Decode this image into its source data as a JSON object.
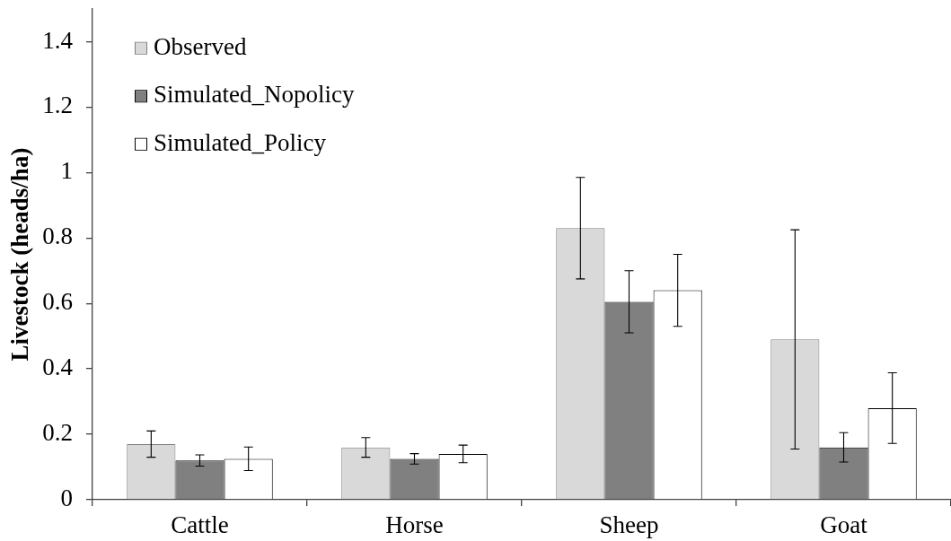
{
  "chart_data": {
    "type": "bar",
    "ylabel": "Livestock (heads/ha)",
    "categories": [
      "Cattle",
      "Horse",
      "Sheep",
      "Goat"
    ],
    "series": [
      {
        "name": "Observed",
        "color": "#d9d9d9",
        "values": [
          0.17,
          0.16,
          0.83,
          0.49
        ],
        "errors": [
          0.04,
          0.03,
          0.155,
          0.335
        ]
      },
      {
        "name": "Simulated_Nopolicy",
        "color": "#808080",
        "values": [
          0.12,
          0.125,
          0.605,
          0.16
        ],
        "errors": [
          0.017,
          0.016,
          0.095,
          0.045
        ]
      },
      {
        "name": "Simulated_Policy",
        "color": "#ffffff",
        "values": [
          0.125,
          0.14,
          0.64,
          0.28
        ],
        "errors": [
          0.036,
          0.027,
          0.11,
          0.108
        ]
      }
    ],
    "ylim": [
      0,
      1.5
    ],
    "yticks": [
      0,
      0.2,
      0.4,
      0.6,
      0.8,
      1,
      1.2,
      1.4
    ],
    "legend": "top left"
  }
}
